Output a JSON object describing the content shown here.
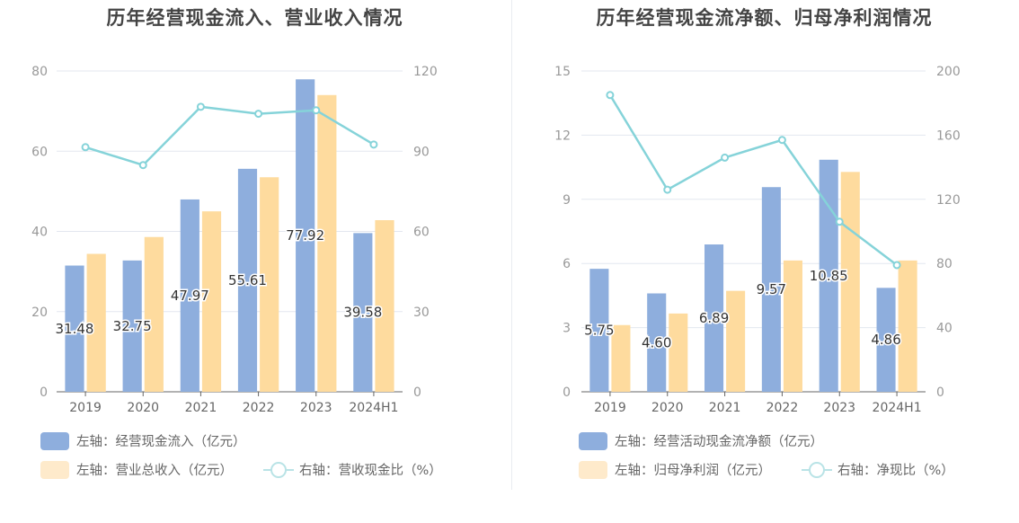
{
  "chart_data": [
    {
      "type": "bar",
      "title": "历年经营现金流入、营业收入情况",
      "categories": [
        "2019",
        "2020",
        "2021",
        "2022",
        "2023",
        "2024H1"
      ],
      "left_axis": {
        "ylim": [
          0,
          80
        ],
        "ticks": [
          0,
          20,
          40,
          60,
          80
        ]
      },
      "right_axis": {
        "ylim": [
          0,
          120
        ],
        "ticks": [
          0,
          30,
          60,
          90,
          120
        ]
      },
      "series": [
        {
          "name": "左轴：经营现金流入（亿元）",
          "type": "bar",
          "axis": "left",
          "color": "#8eaedd",
          "values": [
            31.48,
            32.75,
            47.97,
            55.61,
            77.92,
            39.58
          ],
          "labels": [
            "31.48",
            "32.75",
            "47.97",
            "55.61",
            "77.92",
            "39.58"
          ]
        },
        {
          "name": "左轴：营业总收入（亿元）",
          "type": "bar",
          "axis": "left",
          "color": "#fedb9e",
          "values": [
            34.4,
            38.6,
            45.0,
            53.5,
            74.0,
            42.8
          ]
        },
        {
          "name": "右轴：营收现金比（%）",
          "type": "line",
          "axis": "right",
          "color": "#85d3d9",
          "values": [
            91.5,
            84.8,
            106.6,
            104.0,
            105.3,
            92.5
          ]
        }
      ],
      "legend": {
        "position": "bottom-left"
      }
    },
    {
      "type": "bar",
      "title": "历年经营现金流净额、归母净利润情况",
      "categories": [
        "2019",
        "2020",
        "2021",
        "2022",
        "2023",
        "2024H1"
      ],
      "left_axis": {
        "ylim": [
          0,
          15
        ],
        "ticks": [
          0,
          3,
          6,
          9,
          12,
          15
        ]
      },
      "right_axis": {
        "ylim": [
          0,
          200
        ],
        "ticks": [
          0,
          40,
          80,
          120,
          160,
          200
        ]
      },
      "series": [
        {
          "name": "左轴：经营活动现金流净额（亿元）",
          "type": "bar",
          "axis": "left",
          "color": "#8eaedd",
          "values": [
            5.75,
            4.6,
            6.89,
            9.57,
            10.85,
            4.86
          ],
          "labels": [
            "5.75",
            "4.60",
            "6.89",
            "9.57",
            "10.85",
            "4.86"
          ]
        },
        {
          "name": "左轴：归母净利润（亿元）",
          "type": "bar",
          "axis": "left",
          "color": "#fedb9e",
          "values": [
            3.12,
            3.66,
            4.72,
            6.14,
            10.28,
            6.14
          ]
        },
        {
          "name": "右轴：净现比（%）",
          "type": "line",
          "axis": "right",
          "color": "#85d3d9",
          "values": [
            185,
            126,
            146,
            157,
            106,
            79
          ]
        }
      ],
      "legend": {
        "position": "bottom-left"
      }
    }
  ]
}
